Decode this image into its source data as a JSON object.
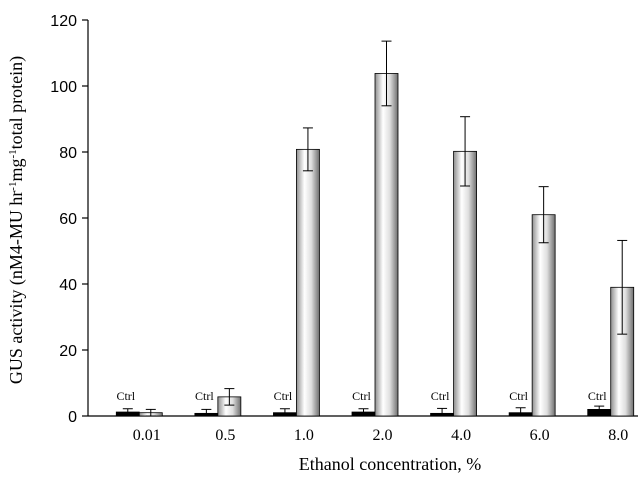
{
  "chart_data": {
    "type": "bar",
    "title": "",
    "xlabel": "Ethanol concentration, %",
    "ylabel": "GUS activity (nM4-MU hr-1mg-1total protein)",
    "ylim": [
      0,
      120
    ],
    "yticks": [
      0,
      20,
      40,
      60,
      80,
      100,
      120
    ],
    "grid": false,
    "legend": "none",
    "categories": [
      "0.01",
      "0.5",
      "1.0",
      "2.0",
      "4.0",
      "6.0",
      "8.0"
    ],
    "control_label": "Ctrl",
    "series": [
      {
        "values": [
          1.2,
          0.8,
          1.0,
          1.2,
          0.8,
          1.0,
          2.0
        ],
        "errors": [
          1.0,
          1.2,
          1.2,
          1.0,
          1.5,
          1.5,
          1.0
        ],
        "color": "#000000"
      },
      {
        "values": [
          1.0,
          5.8,
          80.8,
          103.8,
          80.2,
          61.0,
          39.0
        ],
        "errors": [
          1.0,
          2.5,
          6.5,
          9.8,
          10.5,
          8.5,
          14.2
        ],
        "color": "#bdbdbd"
      }
    ]
  }
}
